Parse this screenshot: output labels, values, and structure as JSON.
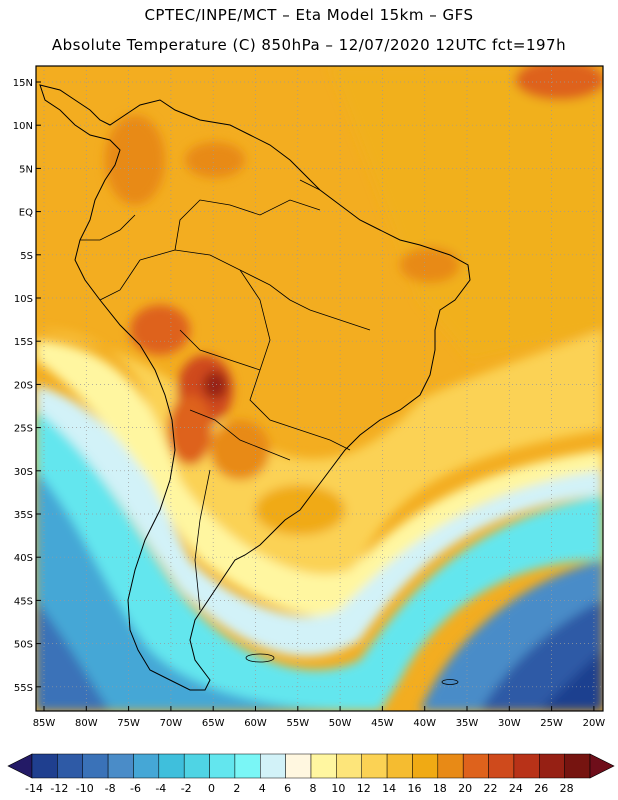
{
  "header": {
    "line1": "CPTEC/INPE/MCT –  Eta Model 15km – GFS",
    "line2": "Absolute Temperature (C) 850hPa – 12/07/2020 12UTC fct=197h"
  },
  "map": {
    "lat_labels": [
      "15N",
      "10N",
      "5N",
      "EQ",
      "5S",
      "10S",
      "15S",
      "20S",
      "25S",
      "30S",
      "35S",
      "40S",
      "45S",
      "50S",
      "55S"
    ],
    "lon_labels": [
      "85W",
      "80W",
      "75W",
      "70W",
      "65W",
      "60W",
      "55W",
      "50W",
      "45W",
      "40W",
      "35W",
      "30W",
      "25W",
      "20W"
    ],
    "gridlines": "dotted",
    "region": "South America"
  },
  "colorbar": {
    "labels": [
      "-14",
      "-12",
      "-10",
      "-8",
      "-6",
      "-4",
      "-2",
      "0",
      "2",
      "4",
      "6",
      "8",
      "10",
      "12",
      "14",
      "16",
      "18",
      "20",
      "22",
      "24",
      "26",
      "28"
    ],
    "colors": [
      "#1f3f8f",
      "#2e5aa6",
      "#3a72b8",
      "#4a8cc8",
      "#45a7d6",
      "#3fbfdc",
      "#4fd4e4",
      "#63e6ee",
      "#7af6f6",
      "#d2f2f8",
      "#fff7e0",
      "#fff6a0",
      "#fde57a",
      "#fbd254",
      "#f5bc30",
      "#f0aa14",
      "#e88a16",
      "#de621c",
      "#cf4a1c",
      "#b83218",
      "#962014",
      "#761410"
    ],
    "arrow_left_color": "#231a66",
    "arrow_right_color": "#6e0e1a"
  }
}
